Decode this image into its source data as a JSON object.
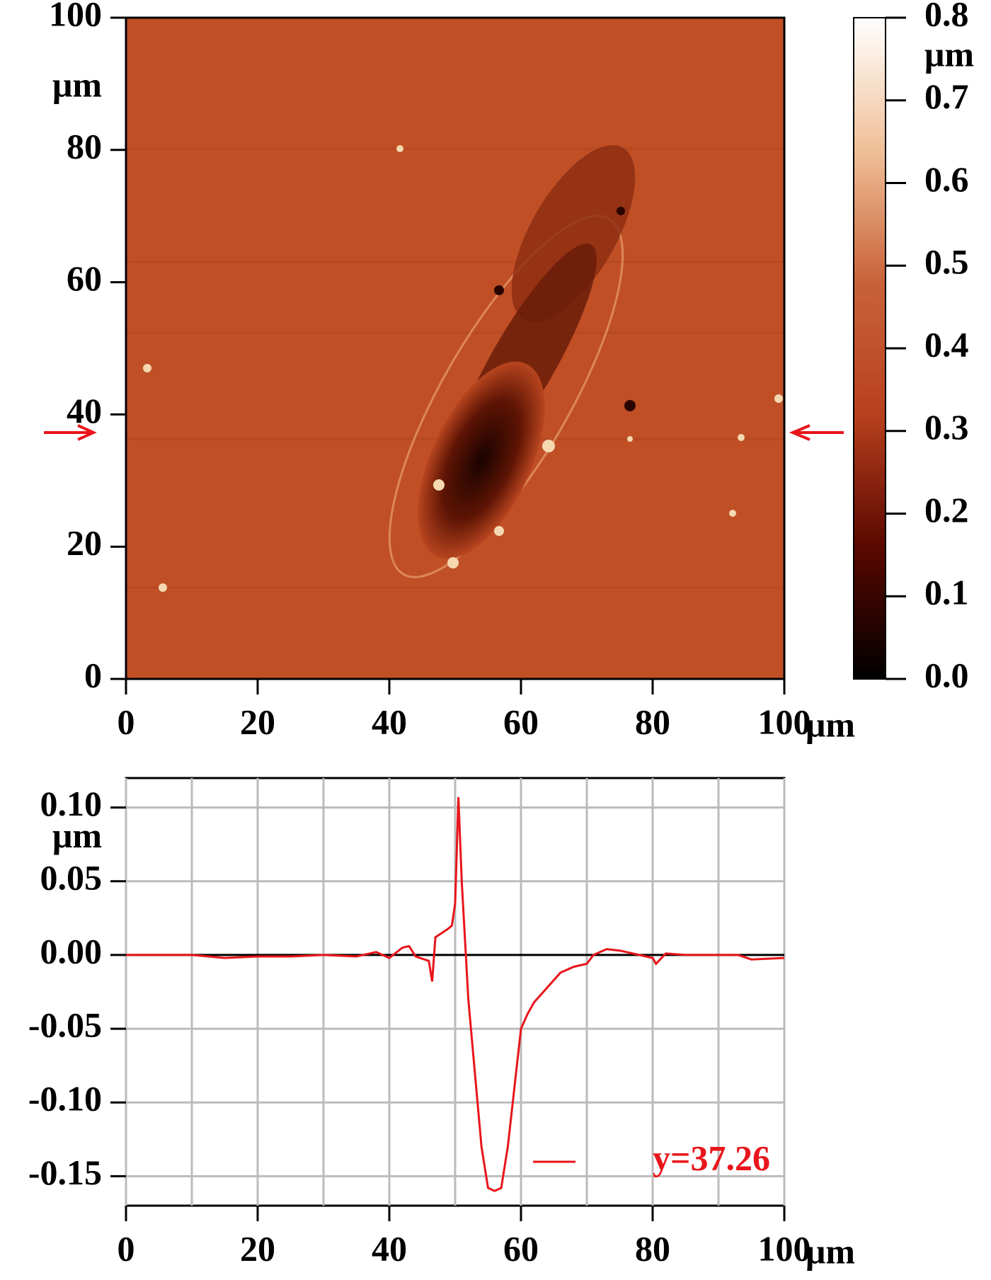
{
  "chart_data": [
    {
      "type": "heatmap",
      "xlim": [
        0,
        100
      ],
      "ylim": [
        0,
        100
      ],
      "xticks": [
        0,
        20,
        40,
        60,
        80,
        100
      ],
      "yticks": [
        0,
        20,
        40,
        60,
        80,
        100
      ],
      "x_unit": "μm",
      "y_unit": "μm",
      "profile_y": 37.26,
      "colorbar": {
        "lim": [
          0,
          0.8
        ],
        "unit": "μm",
        "ticks": [
          {
            "value": 0,
            "label": "0.0"
          },
          {
            "value": 0.1,
            "label": "0.1"
          },
          {
            "value": 0.2,
            "label": "0.2"
          },
          {
            "value": 0.3,
            "label": "0.3"
          },
          {
            "value": 0.4,
            "label": "0.4"
          },
          {
            "value": 0.5,
            "label": "0.5"
          },
          {
            "value": 0.6,
            "label": "0.6"
          },
          {
            "value": 0.7,
            "label": "0.7"
          },
          {
            "value": 0.8,
            "label": "0.8"
          }
        ],
        "colormap": [
          "#000000",
          "#5a0800",
          "#b8401e",
          "#c8623a",
          "#f0c098",
          "#ffffff"
        ]
      }
    },
    {
      "type": "line",
      "xlim": [
        0,
        100
      ],
      "ylim": [
        -0.17,
        0.12
      ],
      "xticks": [
        0,
        20,
        40,
        60,
        80,
        100
      ],
      "xgrid": [
        10,
        30,
        50,
        70,
        90
      ],
      "x_unit": "μm",
      "y_unit": "μm",
      "yticks": [
        {
          "value": -0.15,
          "label": "-0.15"
        },
        {
          "value": -0.1,
          "label": "-0.10"
        },
        {
          "value": -0.05,
          "label": "-0.05"
        },
        {
          "value": 0,
          "label": "0.00"
        },
        {
          "value": 0.05,
          "label": "0.05"
        },
        {
          "value": 0.1,
          "label": "0.10"
        }
      ],
      "grid": true,
      "legend": "lower right",
      "series": [
        {
          "name": "y=37.26",
          "color": "#e8151b",
          "x": [
            0,
            5,
            10,
            15,
            20,
            25,
            30,
            35,
            38,
            40,
            42,
            43,
            44,
            46,
            46.5,
            47,
            48,
            49,
            49.5,
            50,
            50.5,
            51,
            52,
            53,
            54,
            55,
            56,
            57,
            58,
            59,
            60,
            61,
            62,
            64,
            66,
            68,
            70,
            71,
            73,
            75,
            77,
            80,
            80.5,
            82,
            85,
            90,
            93,
            95,
            100
          ],
          "values": [
            0,
            0,
            0,
            -0.002,
            -0.001,
            -0.001,
            0,
            -0.001,
            0.002,
            -0.002,
            0.005,
            0.006,
            -0.001,
            -0.004,
            -0.018,
            0.012,
            0.015,
            0.018,
            0.02,
            0.035,
            0.107,
            0.05,
            -0.03,
            -0.08,
            -0.13,
            -0.158,
            -0.16,
            -0.158,
            -0.13,
            -0.09,
            -0.05,
            -0.04,
            -0.032,
            -0.022,
            -0.012,
            -0.008,
            -0.006,
            0,
            0.004,
            0.003,
            0.001,
            -0.002,
            -0.006,
            0.001,
            0,
            0,
            0,
            -0.003,
            -0.002
          ]
        }
      ]
    }
  ]
}
